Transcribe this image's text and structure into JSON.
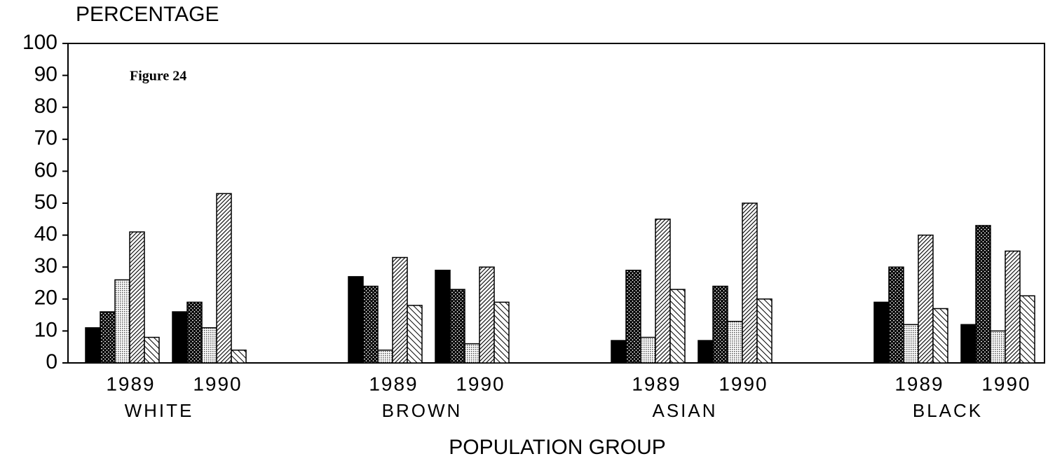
{
  "chart_data": {
    "type": "bar",
    "annotation": "Figure 24",
    "y_label": "PERCENTAGE",
    "x_label": "POPULATION GROUP",
    "categories": [
      "1989",
      "1990",
      "1989",
      "1990",
      "1989",
      "1990",
      "1989",
      "1990"
    ],
    "group_labels": [
      "WHITE",
      "BROWN",
      "ASIAN",
      "BLACK"
    ],
    "ylim": [
      0,
      100
    ],
    "yticks": [
      0,
      10,
      20,
      30,
      40,
      50,
      60,
      70,
      80,
      90,
      100
    ],
    "series": [
      {
        "color": "#000000",
        "pattern": "solid",
        "values": [
          11,
          16,
          27,
          29,
          7,
          7,
          19,
          12
        ]
      },
      {
        "color": "#000000",
        "pattern": "crosshatch",
        "values": [
          16,
          19,
          24,
          23,
          29,
          24,
          30,
          43
        ]
      },
      {
        "color": "#000000",
        "pattern": "dots",
        "values": [
          26,
          11,
          4,
          6,
          8,
          13,
          12,
          10
        ]
      },
      {
        "color": "#000000",
        "pattern": "dense-diagonal",
        "values": [
          41,
          53,
          33,
          30,
          45,
          50,
          40,
          35
        ]
      },
      {
        "color": "#000000",
        "pattern": "diagonal",
        "values": [
          8,
          4,
          18,
          19,
          23,
          20,
          17,
          21
        ]
      }
    ]
  }
}
